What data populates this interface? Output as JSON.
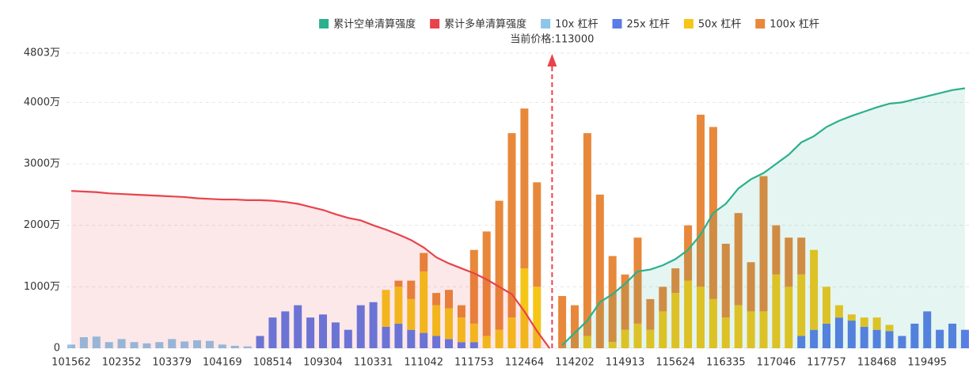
{
  "chart_data": {
    "type": "bar",
    "annotation": "当前价格:113000",
    "categories": [
      "101562",
      null,
      null,
      null,
      "102352",
      null,
      null,
      null,
      "103379",
      null,
      null,
      null,
      "104169",
      null,
      null,
      null,
      "108514",
      null,
      null,
      null,
      "109304",
      null,
      null,
      null,
      "110331",
      null,
      null,
      null,
      "111042",
      null,
      null,
      null,
      "111753",
      null,
      null,
      null,
      "112464",
      null,
      null,
      null,
      "114202",
      null,
      null,
      null,
      "114913",
      null,
      null,
      null,
      "115624",
      null,
      null,
      null,
      "116335",
      null,
      null,
      null,
      "117046",
      null,
      null,
      null,
      "117757",
      null,
      null,
      null,
      "118468",
      null,
      null,
      null,
      "119495",
      null,
      null,
      null
    ],
    "ylim": [
      0,
      4803
    ],
    "yticks": [
      0,
      {
        "value": 1000,
        "label": "1000万"
      },
      {
        "value": 2000,
        "label": "2000万"
      },
      {
        "value": 3000,
        "label": "3000万"
      },
      {
        "value": 4000,
        "label": "4000万"
      },
      {
        "value": 4803,
        "label": "4803万"
      }
    ],
    "grid": true,
    "series": [
      {
        "name": "累计空单清算强度",
        "type": "line",
        "color": "#2bb08c",
        "values": [
          null,
          null,
          null,
          null,
          null,
          null,
          null,
          null,
          null,
          null,
          null,
          null,
          null,
          null,
          null,
          null,
          null,
          null,
          null,
          null,
          null,
          null,
          null,
          null,
          null,
          null,
          null,
          null,
          null,
          null,
          null,
          null,
          null,
          null,
          null,
          null,
          null,
          null,
          null,
          50,
          250,
          450,
          750,
          880,
          1050,
          1250,
          1280,
          1350,
          1450,
          1600,
          1850,
          2200,
          2350,
          2600,
          2750,
          2850,
          3000,
          3150,
          3350,
          3450,
          3600,
          3700,
          3780,
          3850,
          3920,
          3980,
          4000,
          4050,
          4100,
          4150,
          4200,
          4230
        ]
      },
      {
        "name": "累计多单清算强度",
        "type": "line",
        "color": "#e8434b",
        "values": [
          2560,
          2550,
          2540,
          2520,
          2510,
          2500,
          2490,
          2480,
          2470,
          2460,
          2440,
          2430,
          2420,
          2420,
          2410,
          2410,
          2400,
          2380,
          2350,
          2300,
          2250,
          2180,
          2120,
          2080,
          2000,
          1930,
          1850,
          1760,
          1640,
          1480,
          1380,
          1300,
          1220,
          1120,
          1000,
          880,
          600,
          280,
          0,
          null,
          null,
          null,
          null,
          null,
          null,
          null,
          null,
          null,
          null,
          null,
          null,
          null,
          null,
          null,
          null,
          null,
          null,
          null,
          null,
          null,
          null,
          null,
          null,
          null,
          null,
          null,
          null,
          null,
          null,
          null,
          null,
          null
        ]
      },
      {
        "name": "10x 杠杆",
        "type": "bar",
        "color": "#8ec5ea",
        "values": [
          60,
          180,
          190,
          100,
          150,
          100,
          80,
          100,
          150,
          110,
          130,
          120,
          60,
          40,
          30,
          0,
          0,
          0,
          0,
          0,
          0,
          0,
          0,
          0,
          0,
          0,
          0,
          0,
          0,
          0,
          0,
          0,
          0,
          0,
          0,
          0,
          0,
          0,
          0,
          0,
          0,
          0,
          0,
          0,
          0,
          0,
          0,
          0,
          0,
          0,
          0,
          0,
          0,
          0,
          0,
          0,
          0,
          0,
          0,
          0,
          0,
          0,
          0,
          0,
          0,
          0,
          0,
          0,
          0,
          0,
          0,
          0
        ]
      },
      {
        "name": "25x 杠杆",
        "type": "bar",
        "color": "#5b7be8",
        "values": [
          0,
          0,
          0,
          0,
          0,
          0,
          0,
          0,
          0,
          0,
          0,
          0,
          0,
          0,
          0,
          200,
          500,
          600,
          700,
          500,
          550,
          420,
          300,
          700,
          750,
          350,
          400,
          300,
          250,
          200,
          150,
          100,
          100,
          0,
          0,
          0,
          0,
          0,
          0,
          0,
          0,
          0,
          0,
          0,
          0,
          0,
          0,
          0,
          0,
          0,
          0,
          0,
          0,
          0,
          0,
          0,
          0,
          0,
          200,
          300,
          400,
          500,
          450,
          350,
          300,
          280,
          200,
          400,
          600,
          300,
          400,
          300
        ]
      },
      {
        "name": "50x 杠杆",
        "type": "bar",
        "color": "#f5c518",
        "values": [
          0,
          0,
          0,
          0,
          0,
          0,
          0,
          0,
          0,
          0,
          0,
          0,
          0,
          0,
          0,
          0,
          0,
          0,
          0,
          0,
          0,
          0,
          0,
          0,
          0,
          600,
          600,
          500,
          1000,
          500,
          500,
          400,
          300,
          200,
          300,
          500,
          1300,
          1000,
          0,
          0,
          0,
          200,
          0,
          100,
          300,
          400,
          300,
          600,
          900,
          1100,
          1000,
          800,
          500,
          700,
          600,
          600,
          1200,
          1000,
          1000,
          1300,
          600,
          200,
          100,
          150,
          200,
          100,
          0,
          0,
          0,
          0,
          0,
          0
        ]
      },
      {
        "name": "100x 杠杆",
        "type": "bar",
        "color": "#e8883a",
        "values": [
          0,
          0,
          0,
          0,
          0,
          0,
          0,
          0,
          0,
          0,
          0,
          0,
          0,
          0,
          0,
          0,
          0,
          0,
          0,
          0,
          0,
          0,
          0,
          0,
          0,
          0,
          100,
          300,
          300,
          200,
          300,
          200,
          1200,
          1700,
          2100,
          3000,
          2600,
          1700,
          0,
          850,
          700,
          3300,
          2500,
          1400,
          900,
          1400,
          500,
          400,
          400,
          900,
          2800,
          2800,
          1200,
          1500,
          800,
          2200,
          800,
          800,
          600,
          0,
          0,
          0,
          0,
          0,
          0,
          0,
          0,
          0,
          0,
          0,
          0,
          0
        ]
      }
    ]
  }
}
